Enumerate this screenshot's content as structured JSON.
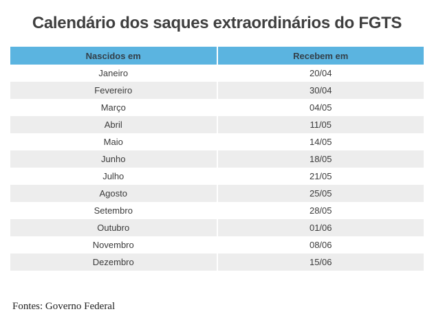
{
  "title": "Calendário dos saques extraordinários do FGTS",
  "table": {
    "headers": {
      "col1": "Nascidos em",
      "col2": "Recebem em"
    },
    "rows": [
      {
        "month": "Janeiro",
        "date": "20/04"
      },
      {
        "month": "Fevereiro",
        "date": "30/04"
      },
      {
        "month": "Março",
        "date": "04/05"
      },
      {
        "month": "Abril",
        "date": "11/05"
      },
      {
        "month": "Maio",
        "date": "14/05"
      },
      {
        "month": "Junho",
        "date": "18/05"
      },
      {
        "month": "Julho",
        "date": "21/05"
      },
      {
        "month": "Agosto",
        "date": "25/05"
      },
      {
        "month": "Setembro",
        "date": "28/05"
      },
      {
        "month": "Outubro",
        "date": "01/06"
      },
      {
        "month": "Novembro",
        "date": "08/06"
      },
      {
        "month": "Dezembro",
        "date": "15/06"
      }
    ]
  },
  "footer": {
    "source": "Fontes: Governo Federal"
  },
  "colors": {
    "header_bg": "#5bb4e0",
    "row_alt_bg": "#ededed",
    "title_text": "#3f3f3f",
    "cell_text": "#3a3a3a"
  },
  "chart_data": {
    "type": "table",
    "title": "Calendário dos saques extraordinários do FGTS",
    "columns": [
      "Nascidos em",
      "Recebem em"
    ],
    "rows": [
      [
        "Janeiro",
        "20/04"
      ],
      [
        "Fevereiro",
        "30/04"
      ],
      [
        "Março",
        "04/05"
      ],
      [
        "Abril",
        "11/05"
      ],
      [
        "Maio",
        "14/05"
      ],
      [
        "Junho",
        "18/05"
      ],
      [
        "Julho",
        "21/05"
      ],
      [
        "Agosto",
        "25/05"
      ],
      [
        "Setembro",
        "28/05"
      ],
      [
        "Outubro",
        "01/06"
      ],
      [
        "Novembro",
        "08/06"
      ],
      [
        "Dezembro",
        "15/06"
      ]
    ],
    "source": "Fontes: Governo Federal",
    "legend_position": "none",
    "grid": false
  }
}
